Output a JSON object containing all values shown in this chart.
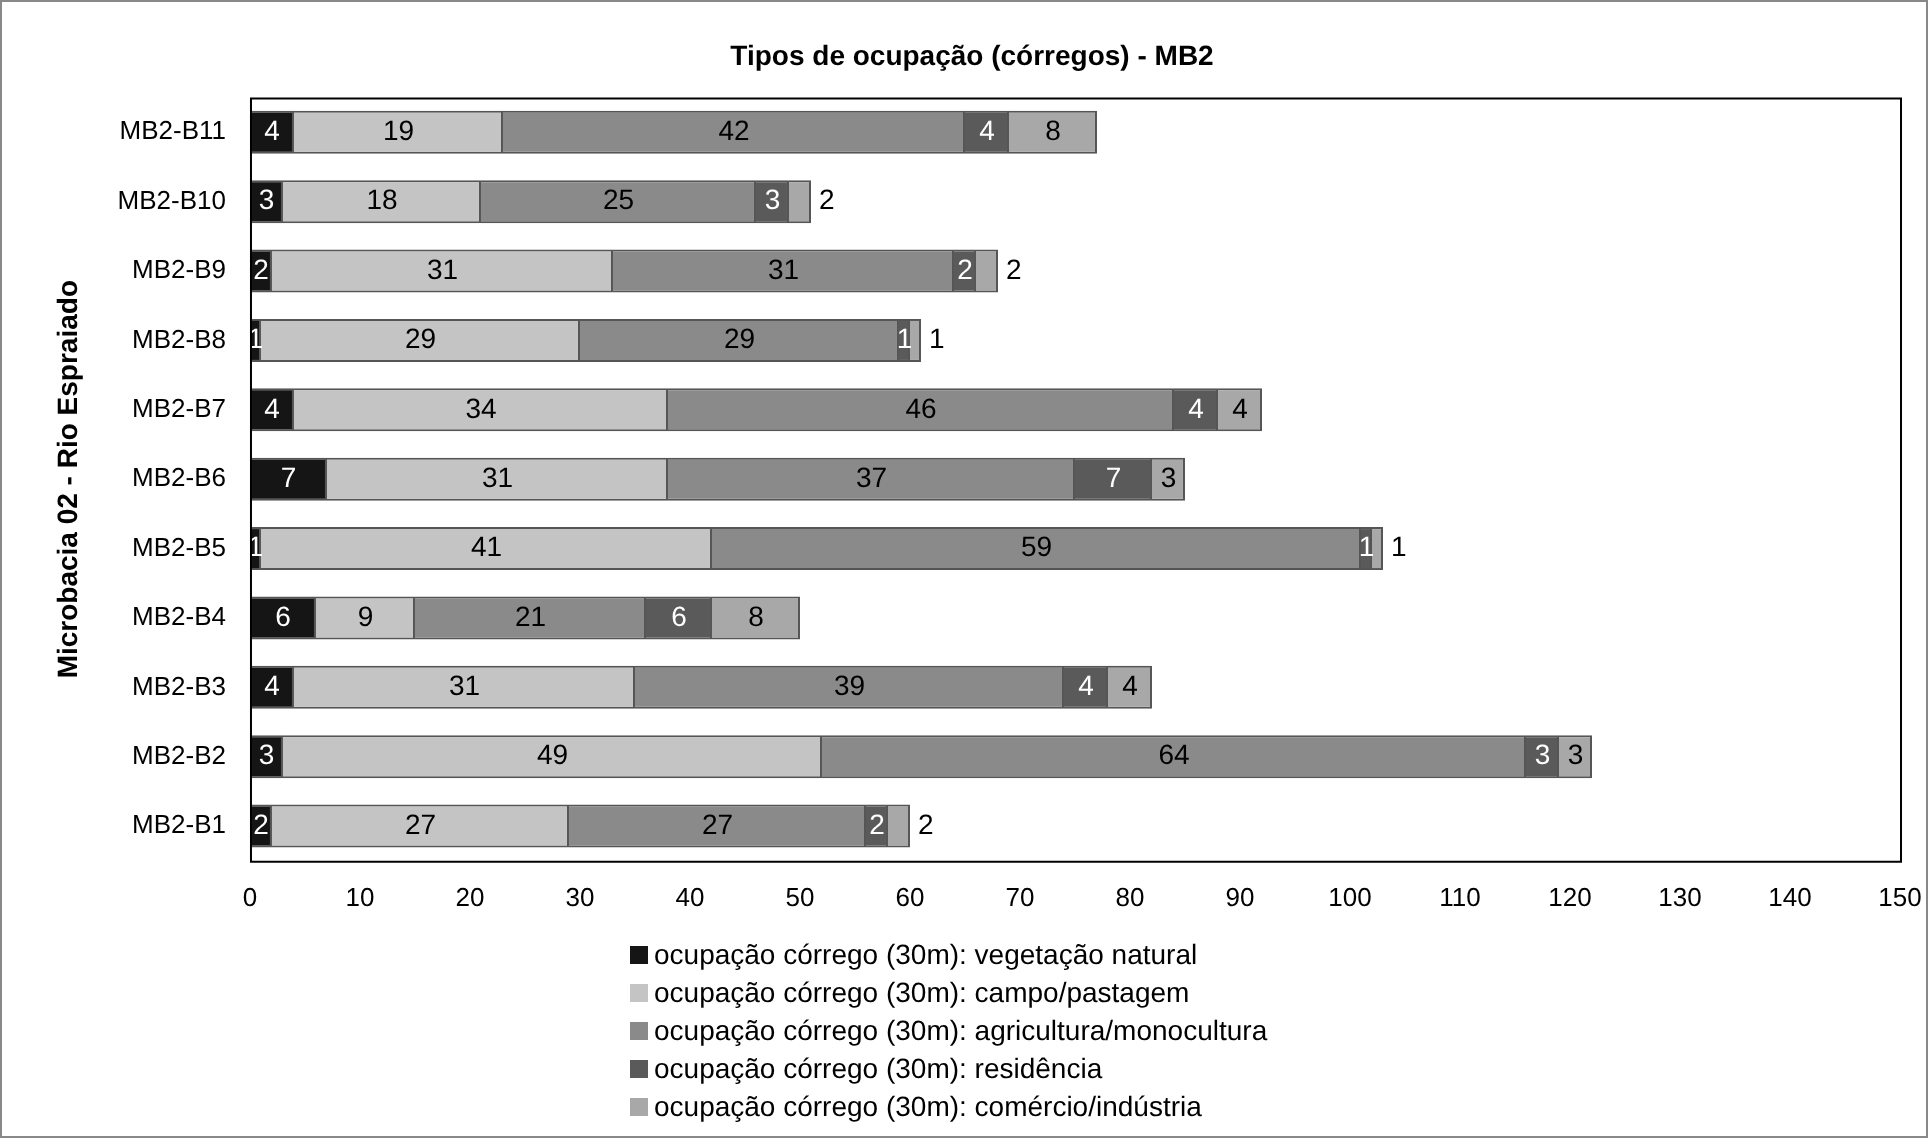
{
  "chart_data": {
    "type": "bar",
    "orientation": "horizontal",
    "stacked": true,
    "title": "Tipos de ocupação (córregos) - MB2",
    "ylabel": "Microbacia 02 - Rio Espraiado",
    "categories": [
      "MB2-B11",
      "MB2-B10",
      "MB2-B9",
      "MB2-B8",
      "MB2-B7",
      "MB2-B6",
      "MB2-B5",
      "MB2-B4",
      "MB2-B3",
      "MB2-B2",
      "MB2-B1"
    ],
    "series": [
      {
        "name": "ocupação córrego (30m): vegetação natural",
        "color": "#151515",
        "values": [
          4,
          3,
          2,
          1,
          4,
          7,
          1,
          6,
          4,
          3,
          2
        ]
      },
      {
        "name": "ocupação córrego (30m): campo/pastagem",
        "color": "#c4c4c4",
        "values": [
          19,
          18,
          31,
          29,
          34,
          31,
          41,
          9,
          31,
          49,
          27
        ]
      },
      {
        "name": "ocupação córrego (30m): agricultura/monocultura",
        "color": "#8a8a8a",
        "values": [
          42,
          25,
          31,
          29,
          46,
          37,
          59,
          21,
          39,
          64,
          27
        ]
      },
      {
        "name": "ocupação córrego (30m): residência",
        "color": "#5a5a5a",
        "values": [
          4,
          3,
          2,
          1,
          4,
          7,
          1,
          6,
          4,
          3,
          2
        ]
      },
      {
        "name": "ocupação córrego (30m): comércio/indústria",
        "color": "#a8a8a8",
        "values": [
          8,
          2,
          2,
          1,
          4,
          3,
          1,
          8,
          4,
          3,
          2
        ]
      }
    ],
    "xlim": [
      0,
      150
    ],
    "xticks": [
      0,
      10,
      20,
      30,
      40,
      50,
      60,
      70,
      80,
      90,
      100,
      110,
      120,
      130,
      140,
      150
    ],
    "data_labels": true,
    "legend": "bottom",
    "grid": false
  }
}
